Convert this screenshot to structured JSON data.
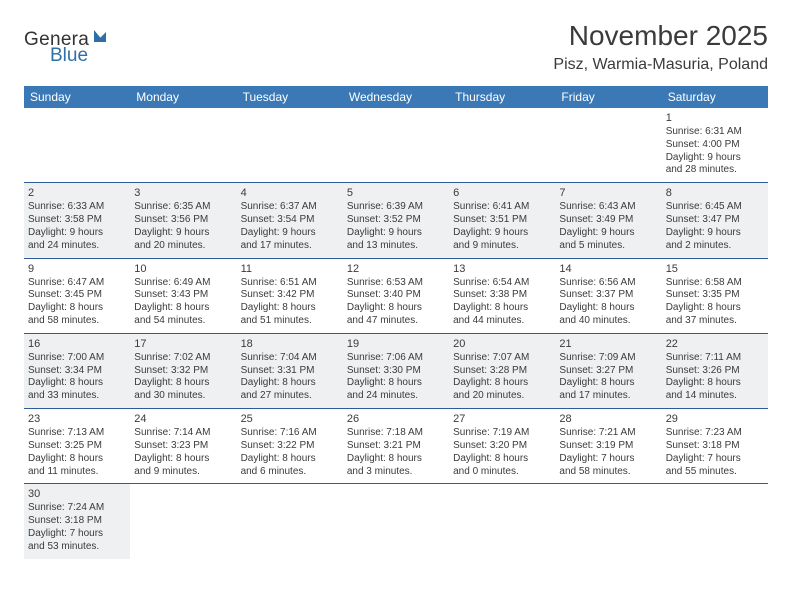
{
  "logo": {
    "main": "Genera",
    "sub": "Blue"
  },
  "title": "November 2025",
  "location": "Pisz, Warmia-Masuria, Poland",
  "colors": {
    "header_bg": "#3a78b6",
    "header_fg": "#ffffff",
    "cell_border": "#2f5c99",
    "shade_bg": "#eef0f2",
    "text": "#3b3b3b",
    "logo_sub": "#2f6fa8"
  },
  "dayHeaders": [
    "Sunday",
    "Monday",
    "Tuesday",
    "Wednesday",
    "Thursday",
    "Friday",
    "Saturday"
  ],
  "weeks": [
    [
      {
        "empty": true
      },
      {
        "empty": true
      },
      {
        "empty": true
      },
      {
        "empty": true
      },
      {
        "empty": true
      },
      {
        "empty": true
      },
      {
        "day": "1",
        "sunrise": "Sunrise: 6:31 AM",
        "sunset": "Sunset: 4:00 PM",
        "dl1": "Daylight: 9 hours",
        "dl2": "and 28 minutes."
      }
    ],
    [
      {
        "day": "2",
        "sunrise": "Sunrise: 6:33 AM",
        "sunset": "Sunset: 3:58 PM",
        "dl1": "Daylight: 9 hours",
        "dl2": "and 24 minutes.",
        "shade": true
      },
      {
        "day": "3",
        "sunrise": "Sunrise: 6:35 AM",
        "sunset": "Sunset: 3:56 PM",
        "dl1": "Daylight: 9 hours",
        "dl2": "and 20 minutes.",
        "shade": true
      },
      {
        "day": "4",
        "sunrise": "Sunrise: 6:37 AM",
        "sunset": "Sunset: 3:54 PM",
        "dl1": "Daylight: 9 hours",
        "dl2": "and 17 minutes.",
        "shade": true
      },
      {
        "day": "5",
        "sunrise": "Sunrise: 6:39 AM",
        "sunset": "Sunset: 3:52 PM",
        "dl1": "Daylight: 9 hours",
        "dl2": "and 13 minutes.",
        "shade": true
      },
      {
        "day": "6",
        "sunrise": "Sunrise: 6:41 AM",
        "sunset": "Sunset: 3:51 PM",
        "dl1": "Daylight: 9 hours",
        "dl2": "and 9 minutes.",
        "shade": true
      },
      {
        "day": "7",
        "sunrise": "Sunrise: 6:43 AM",
        "sunset": "Sunset: 3:49 PM",
        "dl1": "Daylight: 9 hours",
        "dl2": "and 5 minutes.",
        "shade": true
      },
      {
        "day": "8",
        "sunrise": "Sunrise: 6:45 AM",
        "sunset": "Sunset: 3:47 PM",
        "dl1": "Daylight: 9 hours",
        "dl2": "and 2 minutes.",
        "shade": true
      }
    ],
    [
      {
        "day": "9",
        "sunrise": "Sunrise: 6:47 AM",
        "sunset": "Sunset: 3:45 PM",
        "dl1": "Daylight: 8 hours",
        "dl2": "and 58 minutes."
      },
      {
        "day": "10",
        "sunrise": "Sunrise: 6:49 AM",
        "sunset": "Sunset: 3:43 PM",
        "dl1": "Daylight: 8 hours",
        "dl2": "and 54 minutes."
      },
      {
        "day": "11",
        "sunrise": "Sunrise: 6:51 AM",
        "sunset": "Sunset: 3:42 PM",
        "dl1": "Daylight: 8 hours",
        "dl2": "and 51 minutes."
      },
      {
        "day": "12",
        "sunrise": "Sunrise: 6:53 AM",
        "sunset": "Sunset: 3:40 PM",
        "dl1": "Daylight: 8 hours",
        "dl2": "and 47 minutes."
      },
      {
        "day": "13",
        "sunrise": "Sunrise: 6:54 AM",
        "sunset": "Sunset: 3:38 PM",
        "dl1": "Daylight: 8 hours",
        "dl2": "and 44 minutes."
      },
      {
        "day": "14",
        "sunrise": "Sunrise: 6:56 AM",
        "sunset": "Sunset: 3:37 PM",
        "dl1": "Daylight: 8 hours",
        "dl2": "and 40 minutes."
      },
      {
        "day": "15",
        "sunrise": "Sunrise: 6:58 AM",
        "sunset": "Sunset: 3:35 PM",
        "dl1": "Daylight: 8 hours",
        "dl2": "and 37 minutes."
      }
    ],
    [
      {
        "day": "16",
        "sunrise": "Sunrise: 7:00 AM",
        "sunset": "Sunset: 3:34 PM",
        "dl1": "Daylight: 8 hours",
        "dl2": "and 33 minutes.",
        "shade": true
      },
      {
        "day": "17",
        "sunrise": "Sunrise: 7:02 AM",
        "sunset": "Sunset: 3:32 PM",
        "dl1": "Daylight: 8 hours",
        "dl2": "and 30 minutes.",
        "shade": true
      },
      {
        "day": "18",
        "sunrise": "Sunrise: 7:04 AM",
        "sunset": "Sunset: 3:31 PM",
        "dl1": "Daylight: 8 hours",
        "dl2": "and 27 minutes.",
        "shade": true
      },
      {
        "day": "19",
        "sunrise": "Sunrise: 7:06 AM",
        "sunset": "Sunset: 3:30 PM",
        "dl1": "Daylight: 8 hours",
        "dl2": "and 24 minutes.",
        "shade": true
      },
      {
        "day": "20",
        "sunrise": "Sunrise: 7:07 AM",
        "sunset": "Sunset: 3:28 PM",
        "dl1": "Daylight: 8 hours",
        "dl2": "and 20 minutes.",
        "shade": true
      },
      {
        "day": "21",
        "sunrise": "Sunrise: 7:09 AM",
        "sunset": "Sunset: 3:27 PM",
        "dl1": "Daylight: 8 hours",
        "dl2": "and 17 minutes.",
        "shade": true
      },
      {
        "day": "22",
        "sunrise": "Sunrise: 7:11 AM",
        "sunset": "Sunset: 3:26 PM",
        "dl1": "Daylight: 8 hours",
        "dl2": "and 14 minutes.",
        "shade": true
      }
    ],
    [
      {
        "day": "23",
        "sunrise": "Sunrise: 7:13 AM",
        "sunset": "Sunset: 3:25 PM",
        "dl1": "Daylight: 8 hours",
        "dl2": "and 11 minutes."
      },
      {
        "day": "24",
        "sunrise": "Sunrise: 7:14 AM",
        "sunset": "Sunset: 3:23 PM",
        "dl1": "Daylight: 8 hours",
        "dl2": "and 9 minutes."
      },
      {
        "day": "25",
        "sunrise": "Sunrise: 7:16 AM",
        "sunset": "Sunset: 3:22 PM",
        "dl1": "Daylight: 8 hours",
        "dl2": "and 6 minutes."
      },
      {
        "day": "26",
        "sunrise": "Sunrise: 7:18 AM",
        "sunset": "Sunset: 3:21 PM",
        "dl1": "Daylight: 8 hours",
        "dl2": "and 3 minutes."
      },
      {
        "day": "27",
        "sunrise": "Sunrise: 7:19 AM",
        "sunset": "Sunset: 3:20 PM",
        "dl1": "Daylight: 8 hours",
        "dl2": "and 0 minutes."
      },
      {
        "day": "28",
        "sunrise": "Sunrise: 7:21 AM",
        "sunset": "Sunset: 3:19 PM",
        "dl1": "Daylight: 7 hours",
        "dl2": "and 58 minutes."
      },
      {
        "day": "29",
        "sunrise": "Sunrise: 7:23 AM",
        "sunset": "Sunset: 3:18 PM",
        "dl1": "Daylight: 7 hours",
        "dl2": "and 55 minutes."
      }
    ],
    [
      {
        "day": "30",
        "sunrise": "Sunrise: 7:24 AM",
        "sunset": "Sunset: 3:18 PM",
        "dl1": "Daylight: 7 hours",
        "dl2": "and 53 minutes.",
        "shade": true
      },
      {
        "empty": true
      },
      {
        "empty": true
      },
      {
        "empty": true
      },
      {
        "empty": true
      },
      {
        "empty": true
      },
      {
        "empty": true
      }
    ]
  ]
}
